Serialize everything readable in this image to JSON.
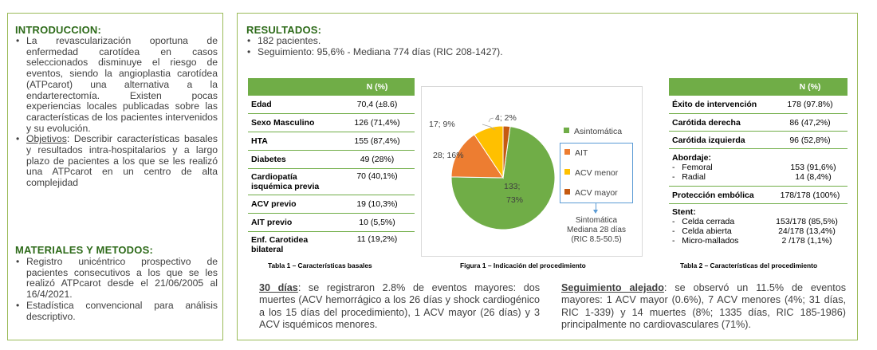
{
  "intro": {
    "title": "INTRODUCCION:",
    "bullet1": "La revascularización oportuna de enfermedad carotídea en casos seleccionados disminuye el riesgo de eventos, siendo la angioplastia carotídea (ATPcarot) una alternativa a la endarterectomía. Existen pocas experiencias locales publicadas sobre las características de los pacientes intervenidos y su evolución.",
    "bullet2_key": "Objetivos",
    "bullet2_rest": ": Describir características basales y resultados intra-hospitalarios y a largo plazo de pacientes a los que se les realizó una ATPcarot en un centro de alta complejidad"
  },
  "methods": {
    "title": "MATERIALES Y METODOS:",
    "bullets": [
      "Registro unicéntrico prospectivo de pacientes consecutivos a los que se les realizó ATPcarot desde el 21/06/2005 al 16/4/2021.",
      "Estadística convencional para análisis descriptivo."
    ]
  },
  "results": {
    "title": "RESULTADOS:",
    "bullets": [
      "182 pacientes.",
      "Seguimiento: 95,6% - Mediana 774 días (RIC 208-1427)."
    ]
  },
  "table1": {
    "header": "N (%)",
    "rows": [
      {
        "label": "Edad",
        "value": "70,4 (±8.6)"
      },
      {
        "label": "Sexo Masculino",
        "value": "126 (71,4%)"
      },
      {
        "label": "HTA",
        "value": "155 (87,4%)"
      },
      {
        "label": "Diabetes",
        "value": "49 (28%)"
      },
      {
        "label": "Cardiopatía isquémica previa",
        "value": "70 (40,1%)"
      },
      {
        "label": "ACV previo",
        "value": "19 (10,3%)"
      },
      {
        "label": "AIT previo",
        "value": "10 (5,5%)"
      },
      {
        "label": "Enf. Carotidea bilateral",
        "value": "11 (19,2%)"
      }
    ],
    "caption": "Tabla 1 – Características basales"
  },
  "figure1": {
    "caption": "Figura 1 – Indicación  del procedimiento",
    "note": [
      "Sintomática",
      "Mediana 28 días",
      "(RIC  8.5-50.5)"
    ],
    "labels": {
      "asint1": "133;",
      "asint2": "73%",
      "aitlab": "28; 16%",
      "menorlab": "17; 9%",
      "mayorlab": "4; 2%"
    }
  },
  "chart_data": {
    "type": "pie",
    "series": [
      {
        "name": "Asintomática",
        "count": 133,
        "percent": 73,
        "color": "#70ad47"
      },
      {
        "name": "AIT",
        "count": 28,
        "percent": 16,
        "color": "#ed7d31"
      },
      {
        "name": "ACV menor",
        "count": 17,
        "percent": 9,
        "color": "#ffc000"
      },
      {
        "name": "ACV mayor",
        "count": 4,
        "percent": 2,
        "color": "#c55a11"
      }
    ]
  },
  "table2": {
    "header": "N (%)",
    "exito": {
      "label": "Éxito de intervención",
      "value": "178 (97.8%)"
    },
    "derecha": {
      "label": "Carótida derecha",
      "value": "86 (47,2%)"
    },
    "izquierda": {
      "label": "Carótida izquierda",
      "value": "96 (52,8%)"
    },
    "abordaje": {
      "label": "Abordaje:",
      "items": [
        {
          "label": "Femoral",
          "value": "153 (91,6%)"
        },
        {
          "label": "Radial",
          "value": "14 (8,4%)"
        }
      ]
    },
    "proteccion": {
      "label": "Protección embólica",
      "value": "178/178 (100%)"
    },
    "stent": {
      "label": "Stent:",
      "items": [
        {
          "label": "Celda cerrada",
          "value": "153/178 (85,5%)"
        },
        {
          "label": "Celda abierta",
          "value": "24/178 (13,4%)"
        },
        {
          "label": "Micro-mallados",
          "value": "2 /178 (1,1%)"
        }
      ]
    },
    "caption": "Tabla 2 – Características del procedimiento"
  },
  "p30": {
    "key": "30 días",
    "text": ": se registraron 2.8% de eventos mayores: dos muertes (ACV hemorrágico a los 26 días y shock cardiogénico a los 15 días del procedimiento), 1 ACV mayor (26 días) y 3 ACV isquémicos menores."
  },
  "plong": {
    "key": "Seguimiento alejado",
    "text": ": se observó un 11.5% de eventos mayores: 1 ACV mayor (0.6%), 7 ACV menores (4%; 31 días, RIC 1-339) y 14 muertes (8%; 1335 días, RIC 185-1986) principalmente no cardiovasculares (71%)."
  }
}
